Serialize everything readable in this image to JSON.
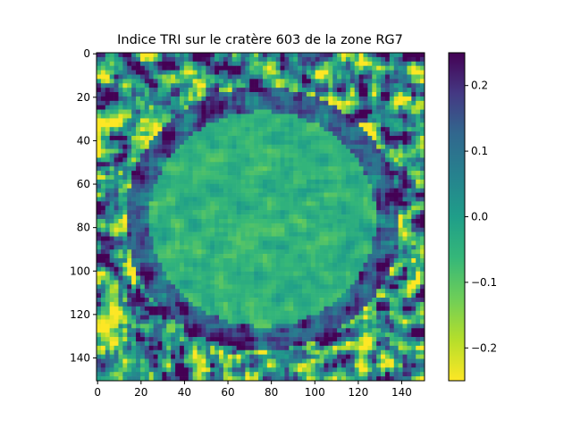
{
  "chart_data": {
    "type": "heatmap",
    "title": "Indice TRI sur le cratère 603 de la zone RG7",
    "xlabel": "",
    "ylabel": "",
    "xlim": [
      0,
      151
    ],
    "ylim": [
      151,
      0
    ],
    "x_ticks": [
      "0",
      "20",
      "40",
      "60",
      "80",
      "100",
      "120",
      "140"
    ],
    "y_ticks": [
      "0",
      "20",
      "40",
      "60",
      "80",
      "100",
      "120",
      "140"
    ],
    "colormap": "viridis_r",
    "vmin": -0.25,
    "vmax": 0.25,
    "colorbar_ticks": [
      "0.2",
      "0.1",
      "0.0",
      "−0.1",
      "−0.2"
    ],
    "colorbar_values": [
      0.2,
      0.1,
      0.0,
      -0.1,
      -0.2
    ],
    "grid": false,
    "colors": {
      "low": "#fde725",
      "mid": "#21918c",
      "high": "#440154"
    }
  }
}
